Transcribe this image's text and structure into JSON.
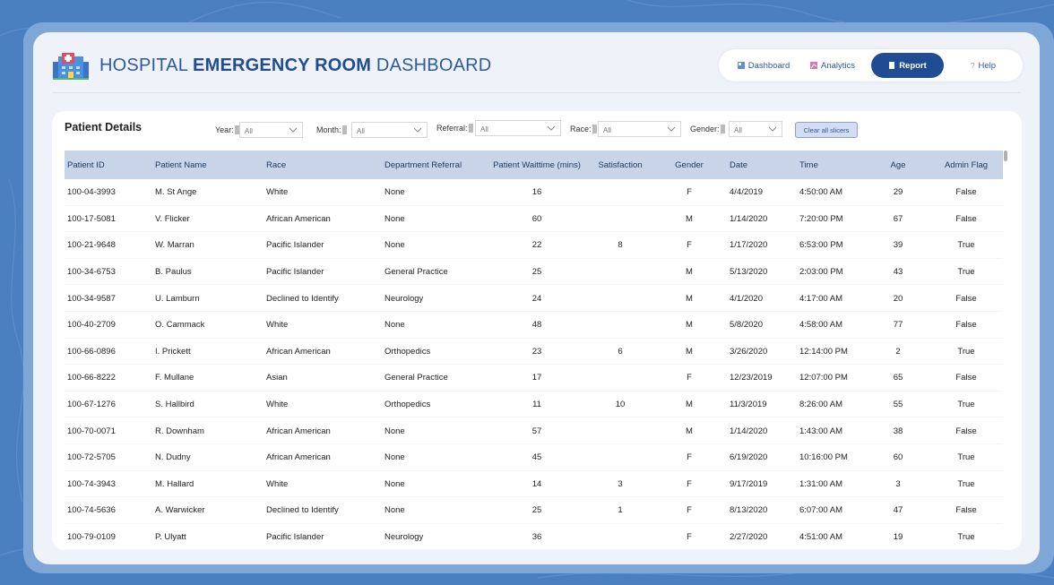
{
  "header": {
    "title_pre": "HOSPITAL ",
    "title_bold": "EMERGENCY ROOM",
    "title_post": " DASHBOARD",
    "logo_icon": "hospital-building-icon"
  },
  "nav": {
    "items": [
      {
        "label": "Dashboard",
        "icon": "dashboard-icon",
        "active": false
      },
      {
        "label": "Analytics",
        "icon": "analytics-icon",
        "active": false
      },
      {
        "label": "Report",
        "icon": "report-icon",
        "active": true
      },
      {
        "label": "Help",
        "icon": "help-icon",
        "active": false
      }
    ]
  },
  "panel": {
    "title": "Patient Details",
    "slicers": [
      {
        "label": "Year:",
        "value": "All"
      },
      {
        "label": "Month:",
        "value": "All"
      },
      {
        "label": "Referral:",
        "value": "All"
      },
      {
        "label": "Race:",
        "value": "All"
      },
      {
        "label": "Gender:",
        "value": "All"
      }
    ],
    "clear_label": "Clear all slicers"
  },
  "table": {
    "columns": [
      "Patient ID",
      "Patient Name",
      "Race",
      "Department Referral",
      "Patient Waittime (mins)",
      "Satisfaction",
      "Gender",
      "Date",
      "Time",
      "Age",
      "Admin Flag"
    ],
    "rows": [
      [
        "100-04-3993",
        "M. St Ange",
        "White",
        "None",
        "16",
        "",
        "F",
        "4/4/2019",
        "4:50:00 AM",
        "29",
        "False"
      ],
      [
        "100-17-5081",
        "V. Flicker",
        "African American",
        "None",
        "60",
        "",
        "M",
        "1/14/2020",
        "7:20:00 PM",
        "67",
        "False"
      ],
      [
        "100-21-9648",
        "W. Marran",
        "Pacific Islander",
        "None",
        "22",
        "8",
        "F",
        "1/17/2020",
        "6:53:00 PM",
        "39",
        "True"
      ],
      [
        "100-34-6753",
        "B. Paulus",
        "Pacific Islander",
        "General Practice",
        "25",
        "",
        "M",
        "5/13/2020",
        "2:03:00 PM",
        "43",
        "True"
      ],
      [
        "100-34-9587",
        "U. Lamburn",
        "Declined to Identify",
        "Neurology",
        "24",
        "",
        "M",
        "4/1/2020",
        "4:17:00 AM",
        "20",
        "False"
      ],
      [
        "100-40-2709",
        "O. Cammack",
        "White",
        "None",
        "48",
        "",
        "M",
        "5/8/2020",
        "4:58:00 AM",
        "77",
        "False"
      ],
      [
        "100-66-0896",
        "I. Prickett",
        "African American",
        "Orthopedics",
        "23",
        "6",
        "M",
        "3/26/2020",
        "12:14:00 PM",
        "2",
        "True"
      ],
      [
        "100-66-8222",
        "F. Mullane",
        "Asian",
        "General Practice",
        "17",
        "",
        "F",
        "12/23/2019",
        "12:07:00 PM",
        "65",
        "False"
      ],
      [
        "100-67-1276",
        "S. Hallbird",
        "White",
        "Orthopedics",
        "11",
        "10",
        "M",
        "11/3/2019",
        "8:26:00 AM",
        "55",
        "True"
      ],
      [
        "100-70-0071",
        "R. Downham",
        "African American",
        "None",
        "57",
        "",
        "M",
        "1/14/2020",
        "1:43:00 AM",
        "38",
        "False"
      ],
      [
        "100-72-5705",
        "N. Dudny",
        "African American",
        "None",
        "45",
        "",
        "F",
        "6/19/2020",
        "10:16:00 PM",
        "60",
        "True"
      ],
      [
        "100-74-3943",
        "M. Hallard",
        "White",
        "None",
        "14",
        "3",
        "F",
        "9/17/2019",
        "1:31:00 AM",
        "3",
        "True"
      ],
      [
        "100-74-5636",
        "A. Warwicker",
        "Declined to Identify",
        "None",
        "25",
        "1",
        "F",
        "8/13/2020",
        "6:07:00 AM",
        "47",
        "False"
      ],
      [
        "100-79-0109",
        "P. Ulyatt",
        "Pacific Islander",
        "Neurology",
        "36",
        "",
        "F",
        "2/27/2020",
        "4:51:00 AM",
        "19",
        "True"
      ]
    ]
  },
  "colors": {
    "brand": "#1f4c93",
    "background": "#4a7fc0",
    "header_row": "#c8d5e9"
  }
}
